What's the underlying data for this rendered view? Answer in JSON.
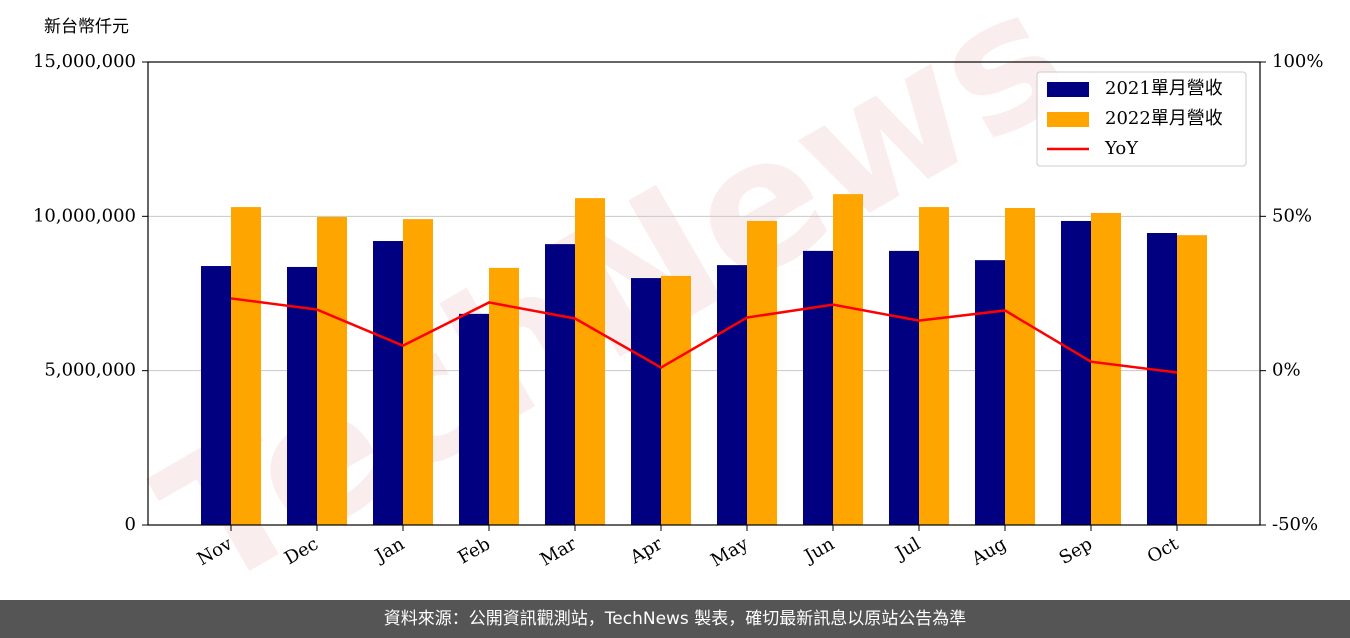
{
  "chart_data": {
    "type": "bar",
    "y_label": "新台幣仟元",
    "watermark": "TechNews",
    "footer": "資料來源：公開資訊觀測站，TechNews 製表，確切最新訊息以原站公告為準",
    "categories": [
      "Nov",
      "Dec",
      "Jan",
      "Feb",
      "Mar",
      "Apr",
      "May",
      "Jun",
      "Jul",
      "Aug",
      "Sep",
      "Oct"
    ],
    "series": [
      {
        "name": "2021單月營收",
        "color": "#000080",
        "type": "bar",
        "values": [
          8390000,
          8360000,
          9200000,
          6840000,
          9100000,
          8000000,
          8420000,
          8880000,
          8880000,
          8580000,
          9850000,
          9460000
        ]
      },
      {
        "name": "2022單月營收",
        "color": "#FFA500",
        "type": "bar",
        "values": [
          10300000,
          9980000,
          9910000,
          8330000,
          10590000,
          8070000,
          9850000,
          10720000,
          10300000,
          10270000,
          10110000,
          9390000
        ]
      },
      {
        "name": "YoY",
        "color": "#ff0000",
        "type": "line",
        "axis": "y2",
        "values": [
          23.4,
          19.8,
          8.1,
          22.1,
          16.9,
          1.0,
          17.2,
          21.4,
          16.2,
          19.5,
          2.9,
          -0.6
        ]
      }
    ],
    "ylim": [
      0,
      15000000
    ],
    "yticks": [
      0,
      {
        "value": 5000000,
        "label": "5,000,000"
      },
      {
        "value": 10000000,
        "label": "10,000,000"
      },
      {
        "value": 15000000,
        "label": "15,000,000"
      }
    ],
    "y2lim": [
      -50,
      100
    ],
    "y2ticks": [
      {
        "value": -50,
        "label": "-50%"
      },
      {
        "value": 0,
        "label": "0%"
      },
      {
        "value": 50,
        "label": "50%"
      },
      {
        "value": 100,
        "label": "100%"
      }
    ],
    "grid": true,
    "legend": "upper right"
  }
}
